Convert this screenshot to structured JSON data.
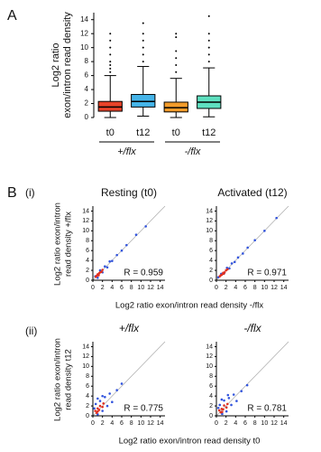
{
  "figure": {
    "panel_a": "A",
    "panel_b": "B",
    "row_labels": [
      "(i)",
      "(ii)"
    ],
    "row_y_labels": [
      [
        "Log2 ratio exon/intron",
        "read density +/flx"
      ],
      [
        "Log2 ratio exon/intron",
        "read density t12"
      ]
    ],
    "row_x_labels": [
      "Log2 ratio exon/intron read density -/flx",
      "Log2 ratio exon/intron read density t0"
    ]
  },
  "chart_data": [
    {
      "type": "box",
      "y_label": [
        "Log2 ratio",
        "exon/intron read density"
      ],
      "categories": [
        "t0",
        "t12",
        "t0",
        "t12"
      ],
      "groups": [
        "+/flx",
        "-/flx"
      ],
      "ylim": [
        0,
        15
      ],
      "yticks": [
        0,
        2,
        4,
        6,
        8,
        10,
        12,
        14
      ],
      "boxes": [
        {
          "color": "#e8432a",
          "whisker_low": 0,
          "q1": 0.9,
          "median": 1.5,
          "q3": 2.3,
          "whisker_high": 6,
          "outliers": [
            6.5,
            7,
            7.5,
            8,
            9,
            10,
            11,
            12
          ]
        },
        {
          "color": "#45b4e8",
          "whisker_low": 0.2,
          "q1": 1.5,
          "median": 2.3,
          "q3": 3.3,
          "whisker_high": 7.3,
          "outliers": [
            8,
            9,
            10,
            11,
            12,
            13.5
          ]
        },
        {
          "color": "#f39c2b",
          "whisker_low": 0,
          "q1": 0.8,
          "median": 1.4,
          "q3": 2.2,
          "whisker_high": 5.6,
          "outliers": [
            6.5,
            7.5,
            8.5,
            9.5,
            11.5,
            12
          ]
        },
        {
          "color": "#5ee0c0",
          "whisker_low": 0.1,
          "q1": 1.3,
          "median": 2.2,
          "q3": 3.1,
          "whisker_high": 7.1,
          "outliers": [
            8,
            9,
            10,
            11,
            12,
            14.5
          ]
        }
      ]
    },
    {
      "type": "scatter",
      "title": "Resting (t0)",
      "annotation": "R = 0.959",
      "xlim": [
        0,
        15
      ],
      "ylim": [
        0,
        15
      ],
      "xticks": [
        0,
        2,
        4,
        6,
        8,
        10,
        12,
        14
      ],
      "yticks": [
        0,
        2,
        4,
        6,
        8,
        10,
        12,
        14
      ],
      "series": [
        {
          "color": "#3355dd",
          "x": [
            0.5,
            1,
            1.5,
            2,
            2.5,
            3,
            3.5,
            4,
            5,
            6,
            7,
            9,
            11
          ],
          "y": [
            0.8,
            0.5,
            2,
            1.6,
            2.8,
            2.6,
            3.8,
            3.9,
            5.1,
            6,
            7.1,
            9.2,
            10.9
          ]
        },
        {
          "color": "#e03020",
          "x": [
            0.8,
            1,
            1.2,
            1.5,
            1.8,
            2,
            0.6,
            1.3
          ],
          "y": [
            0.9,
            1.2,
            1,
            1.6,
            1.7,
            2.1,
            0.7,
            1.4
          ]
        }
      ]
    },
    {
      "type": "scatter",
      "title": "Activated (t12)",
      "annotation": "R = 0.971",
      "xlim": [
        0,
        15
      ],
      "ylim": [
        0,
        15
      ],
      "xticks": [
        0,
        2,
        4,
        6,
        8,
        10,
        12,
        14
      ],
      "yticks": [
        0,
        2,
        4,
        6,
        8,
        10,
        12,
        14
      ],
      "series": [
        {
          "color": "#3355dd",
          "x": [
            0.4,
            1,
            1.6,
            2.2,
            2.7,
            3.2,
            3.8,
            4.5,
            5.5,
            6.5,
            8,
            10,
            12.5
          ],
          "y": [
            0.6,
            1.3,
            1.4,
            2.5,
            2.4,
            3.4,
            3.7,
            4.6,
            5.4,
            6.6,
            8.1,
            10,
            12.6
          ]
        },
        {
          "color": "#e03020",
          "x": [
            0.9,
            1.1,
            1.4,
            1.7,
            2,
            2.3,
            0.7,
            1.5
          ],
          "y": [
            1,
            1.1,
            1.5,
            1.6,
            2,
            2.2,
            0.8,
            1.3
          ]
        }
      ]
    },
    {
      "type": "scatter",
      "title": "+/flx",
      "annotation": "R = 0.775",
      "xlim": [
        0,
        15
      ],
      "ylim": [
        0,
        15
      ],
      "xticks": [
        0,
        2,
        4,
        6,
        8,
        10,
        12,
        14
      ],
      "yticks": [
        0,
        2,
        4,
        6,
        8,
        10,
        12,
        14
      ],
      "series": [
        {
          "color": "#3355dd",
          "x": [
            0.3,
            0.6,
            1,
            1.5,
            2,
            2.5,
            3,
            3.5,
            4,
            5,
            6,
            1,
            2
          ],
          "y": [
            1.5,
            2.4,
            0.3,
            3,
            1,
            3.8,
            2,
            4.5,
            2.8,
            5.2,
            6.5,
            3.5,
            4
          ]
        },
        {
          "color": "#e03020",
          "x": [
            0.5,
            0.8,
            1,
            1.3,
            1.5,
            2,
            1,
            2.2
          ],
          "y": [
            1,
            0.6,
            1.5,
            1.2,
            2,
            1.8,
            0.9,
            2.5
          ]
        }
      ]
    },
    {
      "type": "scatter",
      "title": "-/flx",
      "annotation": "R = 0.781",
      "xlim": [
        0,
        15
      ],
      "ylim": [
        0,
        15
      ],
      "xticks": [
        0,
        2,
        4,
        6,
        8,
        10,
        12,
        14
      ],
      "yticks": [
        0,
        2,
        4,
        6,
        8,
        10,
        12,
        14
      ],
      "series": [
        {
          "color": "#3355dd",
          "x": [
            0.4,
            0.7,
            1.2,
            1.6,
            2.1,
            2.6,
            3.1,
            3.6,
            4.2,
            5.2,
            6.4,
            1.1,
            2.4
          ],
          "y": [
            1.6,
            2.2,
            0.4,
            3.1,
            0.9,
            3.6,
            2.2,
            4.3,
            3,
            5,
            6.2,
            3.3,
            4.2
          ]
        },
        {
          "color": "#e03020",
          "x": [
            0.6,
            0.9,
            1.1,
            1.4,
            1.6,
            2.1,
            1.2,
            2.3
          ],
          "y": [
            1.1,
            0.7,
            1.4,
            1.3,
            2.1,
            1.7,
            0.8,
            2.4
          ]
        }
      ]
    }
  ]
}
